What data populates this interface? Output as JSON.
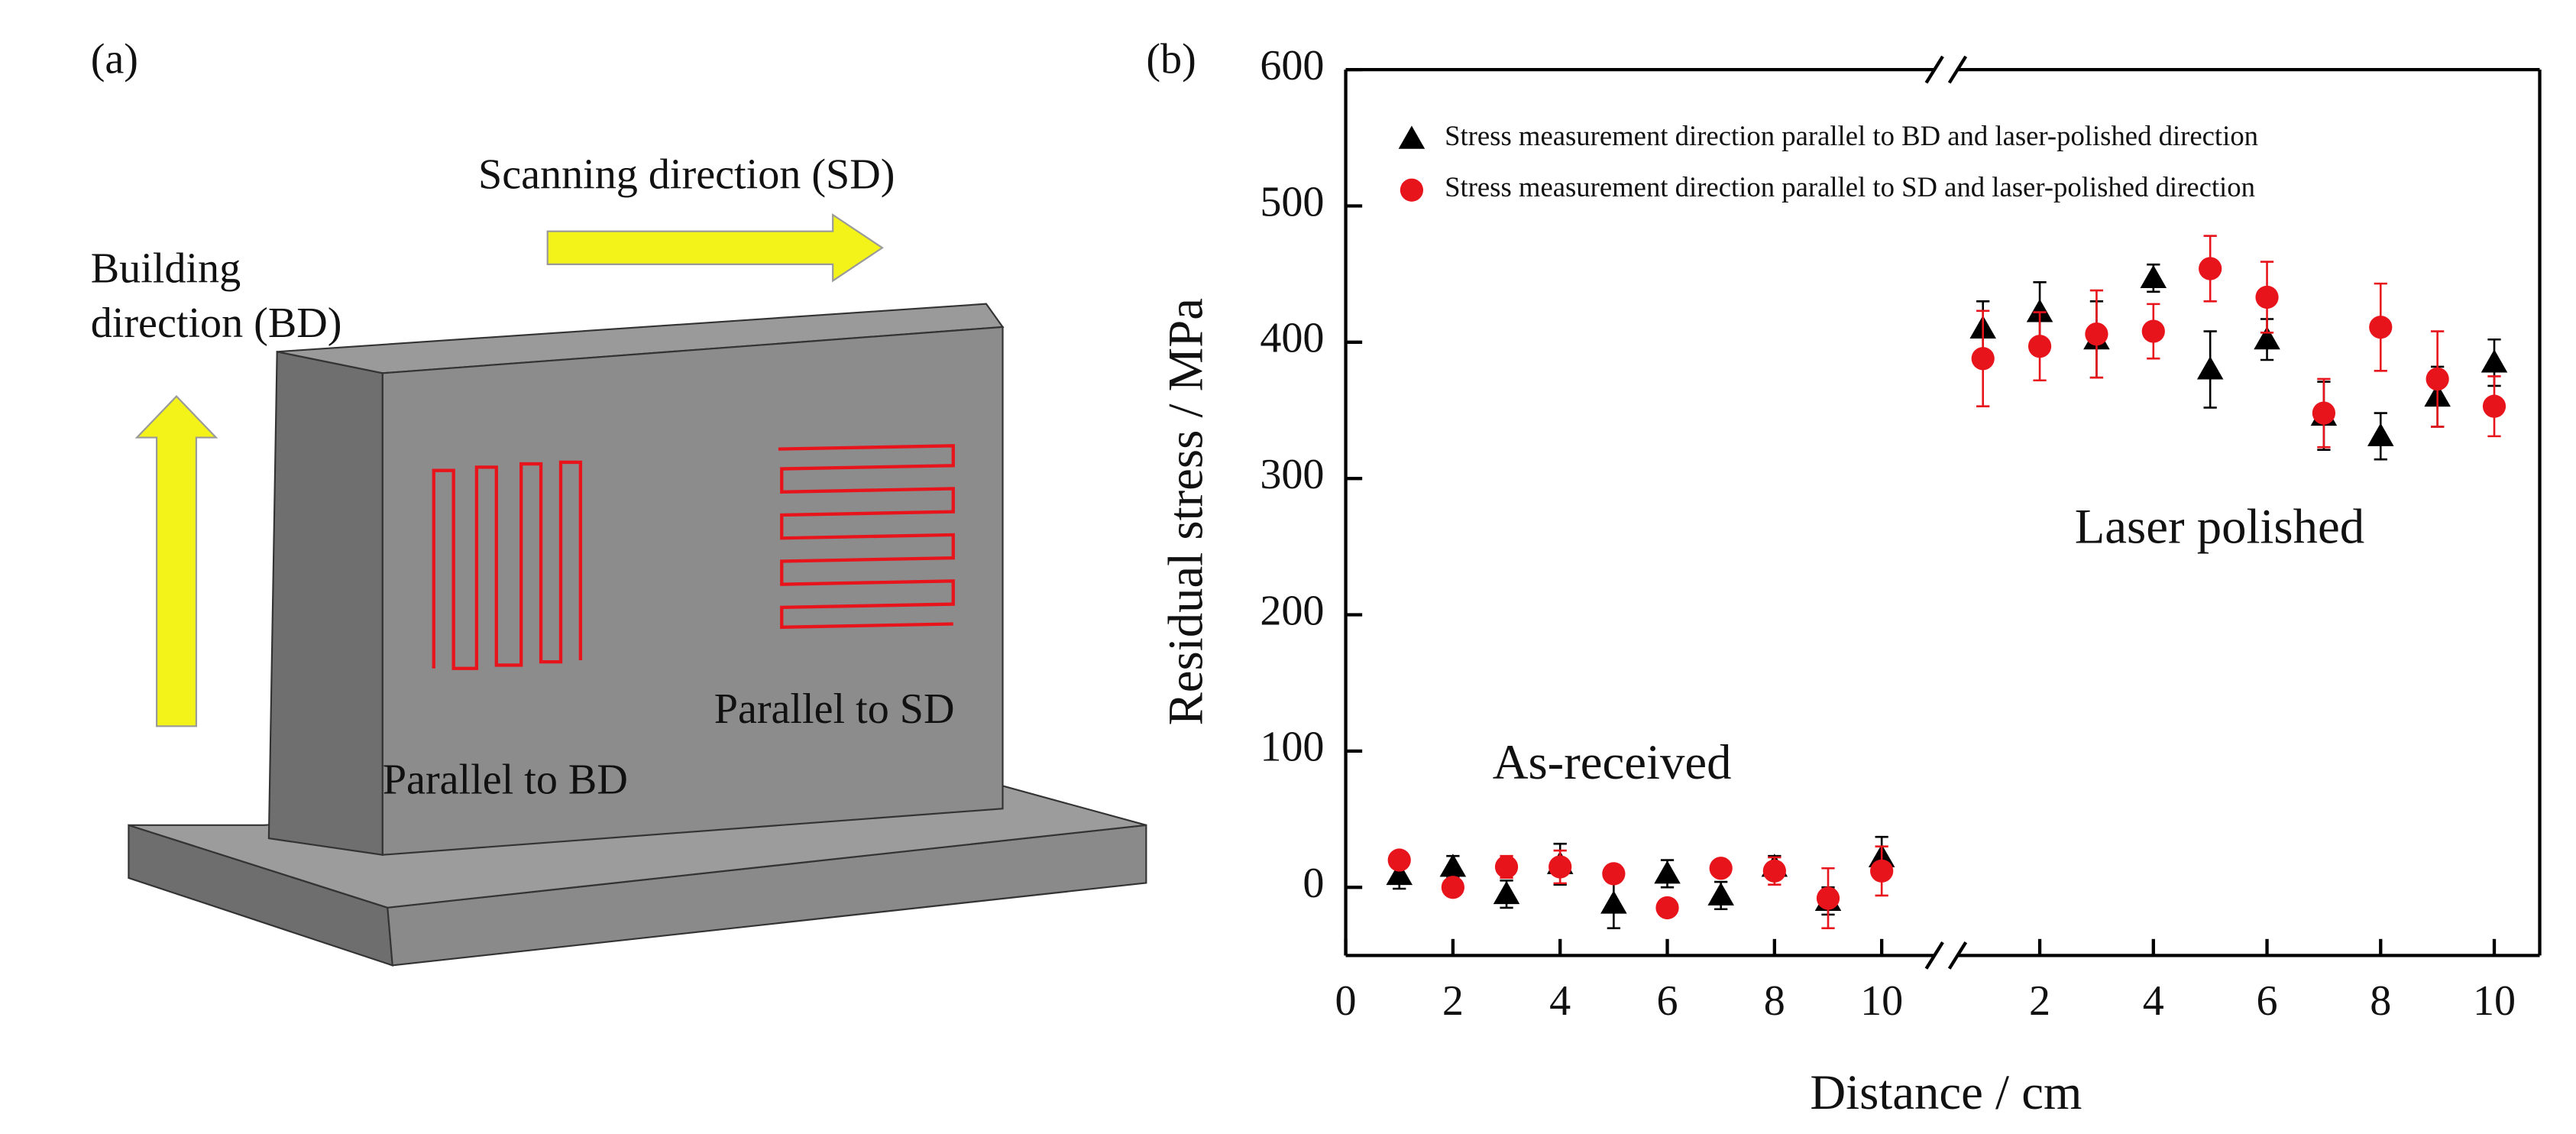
{
  "panel_a": {
    "label": "(a)",
    "scanning_direction": "Scanning direction (SD)",
    "building_direction": [
      "Building",
      "direction (BD)"
    ],
    "parallel_bd": "Parallel to BD",
    "parallel_sd": "Parallel to SD"
  },
  "chart_data": {
    "type": "scatter",
    "panel_label": "(b)",
    "x_label": "Distance / cm",
    "y_label": "Residual stress / MPa",
    "ylim": [
      -50,
      600
    ],
    "yticks": [
      0,
      100,
      200,
      300,
      400,
      500,
      600
    ],
    "x_segments": [
      {
        "annotation": "As-received",
        "xlim": [
          0,
          11.2
        ],
        "xticks": [
          0,
          2,
          4,
          6,
          8,
          10
        ]
      },
      {
        "annotation": "Laser polished",
        "xlim": [
          0.35,
          10.8
        ],
        "xticks": [
          2,
          4,
          6,
          8,
          10
        ]
      }
    ],
    "series": [
      {
        "name": "Stress measurement direction parallel to BD and laser-polished direction",
        "color": "#000000",
        "marker": "triangle",
        "segments": [
          {
            "x": [
              1,
              2,
              3,
              4,
              5,
              6,
              7,
              8,
              9,
              10
            ],
            "values": [
              9,
              15,
              -5,
              17,
              -12,
              10,
              -6,
              15,
              -10,
              22
            ],
            "errors": [
              10,
              8,
              10,
              15,
              18,
              10,
              10,
              8,
              10,
              15
            ]
          },
          {
            "x": [
              1,
              2,
              3,
              4,
              5,
              6,
              7,
              8,
              9,
              10
            ],
            "values": [
              410,
              422,
              402,
              447,
              380,
              402,
              346,
              331,
              360,
              385
            ],
            "errors": [
              20,
              22,
              28,
              10,
              28,
              15,
              25,
              17,
              22,
              17
            ]
          }
        ]
      },
      {
        "name": "Stress measurement direction parallel to SD and laser-polished direction",
        "color": "#e8141b",
        "marker": "circle",
        "segments": [
          {
            "x": [
              1,
              2,
              3,
              4,
              5,
              6,
              7,
              8,
              9,
              10
            ],
            "values": [
              20,
              0,
              15,
              15,
              10,
              -15,
              14,
              12,
              -8,
              12
            ],
            "errors": [
              5,
              5,
              8,
              12,
              5,
              5,
              5,
              10,
              22,
              18
            ]
          },
          {
            "x": [
              1,
              2,
              3,
              4,
              5,
              6,
              7,
              8,
              9,
              10
            ],
            "values": [
              388,
              397,
              406,
              408,
              454,
              433,
              348,
              411,
              373,
              353
            ],
            "errors": [
              35,
              25,
              32,
              20,
              24,
              26,
              25,
              32,
              35,
              22
            ]
          }
        ]
      }
    ]
  }
}
